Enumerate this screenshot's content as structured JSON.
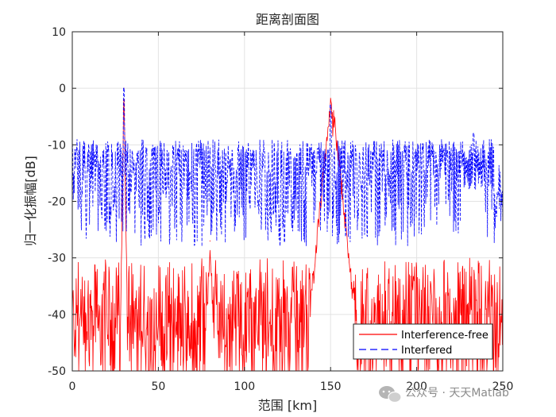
{
  "chart_data": {
    "type": "line",
    "title": "距离剖面图",
    "xlabel": "范围 [km]",
    "ylabel": "归一化振幅[dB]",
    "xlim": [
      0,
      250
    ],
    "ylim": [
      -50,
      10
    ],
    "xticks": [
      "0",
      "50",
      "100",
      "150",
      "200",
      "250"
    ],
    "yticks": [
      "10",
      "0",
      "-10",
      "-20",
      "-30",
      "-40",
      "-50"
    ],
    "grid": true,
    "legend_position": "bottom-right",
    "series": [
      {
        "name": "Interference-free",
        "color": "#ff0000",
        "style": "solid",
        "noise_floor_db": [
          -50,
          -30
        ],
        "peaks": [
          {
            "x": 30,
            "y": 0
          },
          {
            "x": 80,
            "y": -27
          },
          {
            "x": 150,
            "y": -3
          },
          {
            "x": 152,
            "y": -5
          }
        ]
      },
      {
        "name": "Interfered",
        "color": "#0000ff",
        "style": "dashed",
        "band_db": [
          -28,
          -9
        ],
        "peaks": [
          {
            "x": 30,
            "y": 0
          },
          {
            "x": 150,
            "y": -3
          },
          {
            "x": 233,
            "y": -8
          }
        ]
      }
    ]
  },
  "watermark": {
    "text": "公众号 · 天天Matlab",
    "icon": "chat-bubble-icon"
  }
}
